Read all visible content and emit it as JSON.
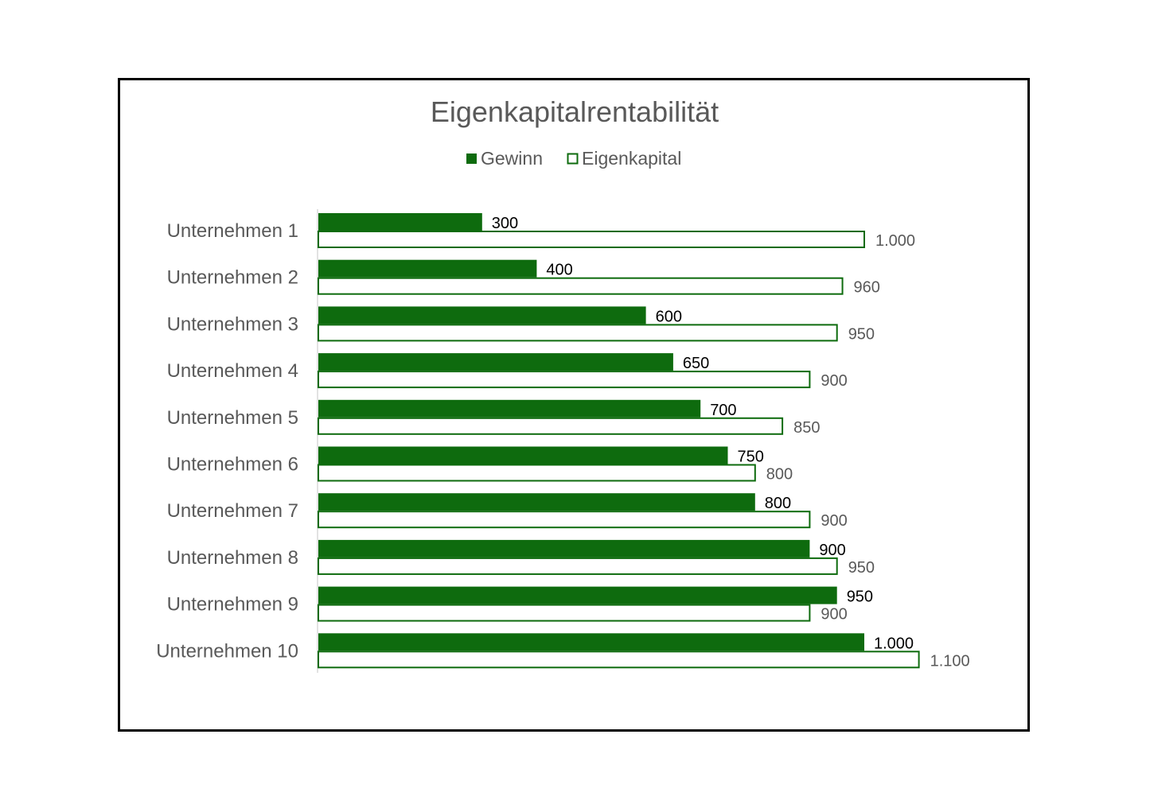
{
  "chart_data": {
    "type": "bar",
    "orientation": "horizontal",
    "title": "Eigenkapitalrentabilität",
    "legend_position": "top",
    "grid": false,
    "xlim": [
      0,
      1200
    ],
    "categories": [
      "Unternehmen 1",
      "Unternehmen 2",
      "Unternehmen 3",
      "Unternehmen 4",
      "Unternehmen 5",
      "Unternehmen 6",
      "Unternehmen 7",
      "Unternehmen 8",
      "Unternehmen 9",
      "Unternehmen 10"
    ],
    "series": [
      {
        "name": "Gewinn",
        "color": "#0e6b0e",
        "fill": "solid",
        "values": [
          300,
          400,
          600,
          650,
          700,
          750,
          800,
          900,
          950,
          1000
        ],
        "labels": [
          "300",
          "400",
          "600",
          "650",
          "700",
          "750",
          "800",
          "900",
          "950",
          "1.000"
        ]
      },
      {
        "name": "Eigenkapital",
        "color": "#0e6b0e",
        "fill": "outline",
        "values": [
          1000,
          960,
          950,
          900,
          850,
          800,
          900,
          950,
          900,
          1100
        ],
        "labels": [
          "1.000",
          "960",
          "950",
          "900",
          "850",
          "800",
          "900",
          "950",
          "900",
          "1.100"
        ]
      }
    ]
  }
}
